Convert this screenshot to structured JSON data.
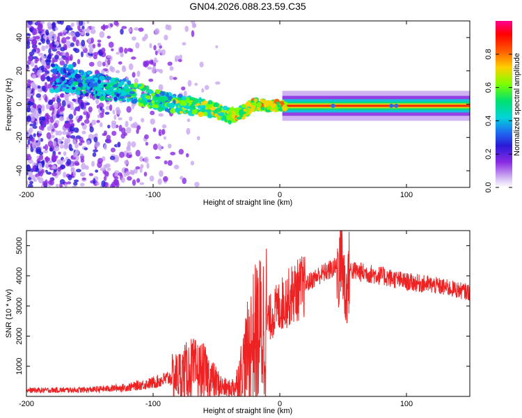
{
  "title": "GN04.2026.088.23.59.C35",
  "colors": {
    "snr_line": "#ee2222",
    "rainbow": [
      "#ffffff",
      "#c8a6f0",
      "#8a2be2",
      "#2a1ad8",
      "#1f6cf0",
      "#00d4d8",
      "#00e070",
      "#7cff00",
      "#ffd000",
      "#ff5a00",
      "#ff0000",
      "#ff0090"
    ]
  },
  "chart_data": [
    {
      "type": "heatmap",
      "name": "spectrogram",
      "xlabel": "Height of straight line (km)",
      "ylabel": "Frequency (Hz)",
      "xlim": [
        -200,
        150
      ],
      "ylim": [
        -50,
        50
      ],
      "xticks": [
        "-200",
        "-100",
        "0",
        "100"
      ],
      "yticks": [
        "40",
        "20",
        "0",
        "-20",
        "-40"
      ],
      "xtick_values": [
        -200,
        -100,
        0,
        100
      ],
      "ytick_values": [
        40,
        20,
        0,
        -20,
        -40
      ],
      "colorbar": {
        "label": "Normalized spectral amplitude",
        "range": [
          0,
          1
        ],
        "ticks": [
          "0.0",
          "0.2",
          "0.4",
          "0.6",
          "0.8"
        ],
        "tick_values": [
          0.0,
          0.2,
          0.4,
          0.6,
          0.8
        ]
      },
      "ridge": [
        [
          -200,
          15
        ],
        [
          -170,
          16
        ],
        [
          -140,
          10
        ],
        [
          -120,
          8
        ],
        [
          -100,
          3
        ],
        [
          -80,
          0
        ],
        [
          -60,
          -2
        ],
        [
          -50,
          -4
        ],
        [
          -40,
          -7
        ],
        [
          -30,
          -5
        ],
        [
          -20,
          0
        ],
        [
          -10,
          -1
        ],
        [
          0,
          -1
        ],
        [
          50,
          -1
        ],
        [
          100,
          -1
        ],
        [
          150,
          -1
        ]
      ]
    },
    {
      "type": "line",
      "name": "snr",
      "xlabel": "Height of straight line (km)",
      "ylabel": "SNR (10 * v/v)",
      "xlim": [
        -200,
        150
      ],
      "ylim": [
        0,
        5500
      ],
      "xticks": [
        "-200",
        "-100",
        "0",
        "100"
      ],
      "yticks": [
        "5000",
        "4000",
        "3000",
        "2000",
        "1000"
      ],
      "xtick_values": [
        -200,
        -100,
        0,
        100
      ],
      "ytick_values": [
        5000,
        4000,
        3000,
        2000,
        1000
      ],
      "envelope": {
        "x": [
          -200,
          -150,
          -120,
          -100,
          -80,
          -70,
          -60,
          -50,
          -45,
          -40,
          -35,
          -30,
          -25,
          -20,
          -15,
          -10,
          0,
          10,
          20,
          30,
          40,
          45,
          50,
          52,
          55,
          60,
          80,
          100,
          120,
          150
        ],
        "y": [
          200,
          220,
          300,
          450,
          700,
          900,
          800,
          450,
          300,
          250,
          350,
          900,
          1500,
          2000,
          2200,
          2500,
          3000,
          3400,
          3700,
          4000,
          4200,
          4300,
          4300,
          3200,
          4200,
          4150,
          4000,
          3800,
          3700,
          3450
        ]
      }
    }
  ]
}
